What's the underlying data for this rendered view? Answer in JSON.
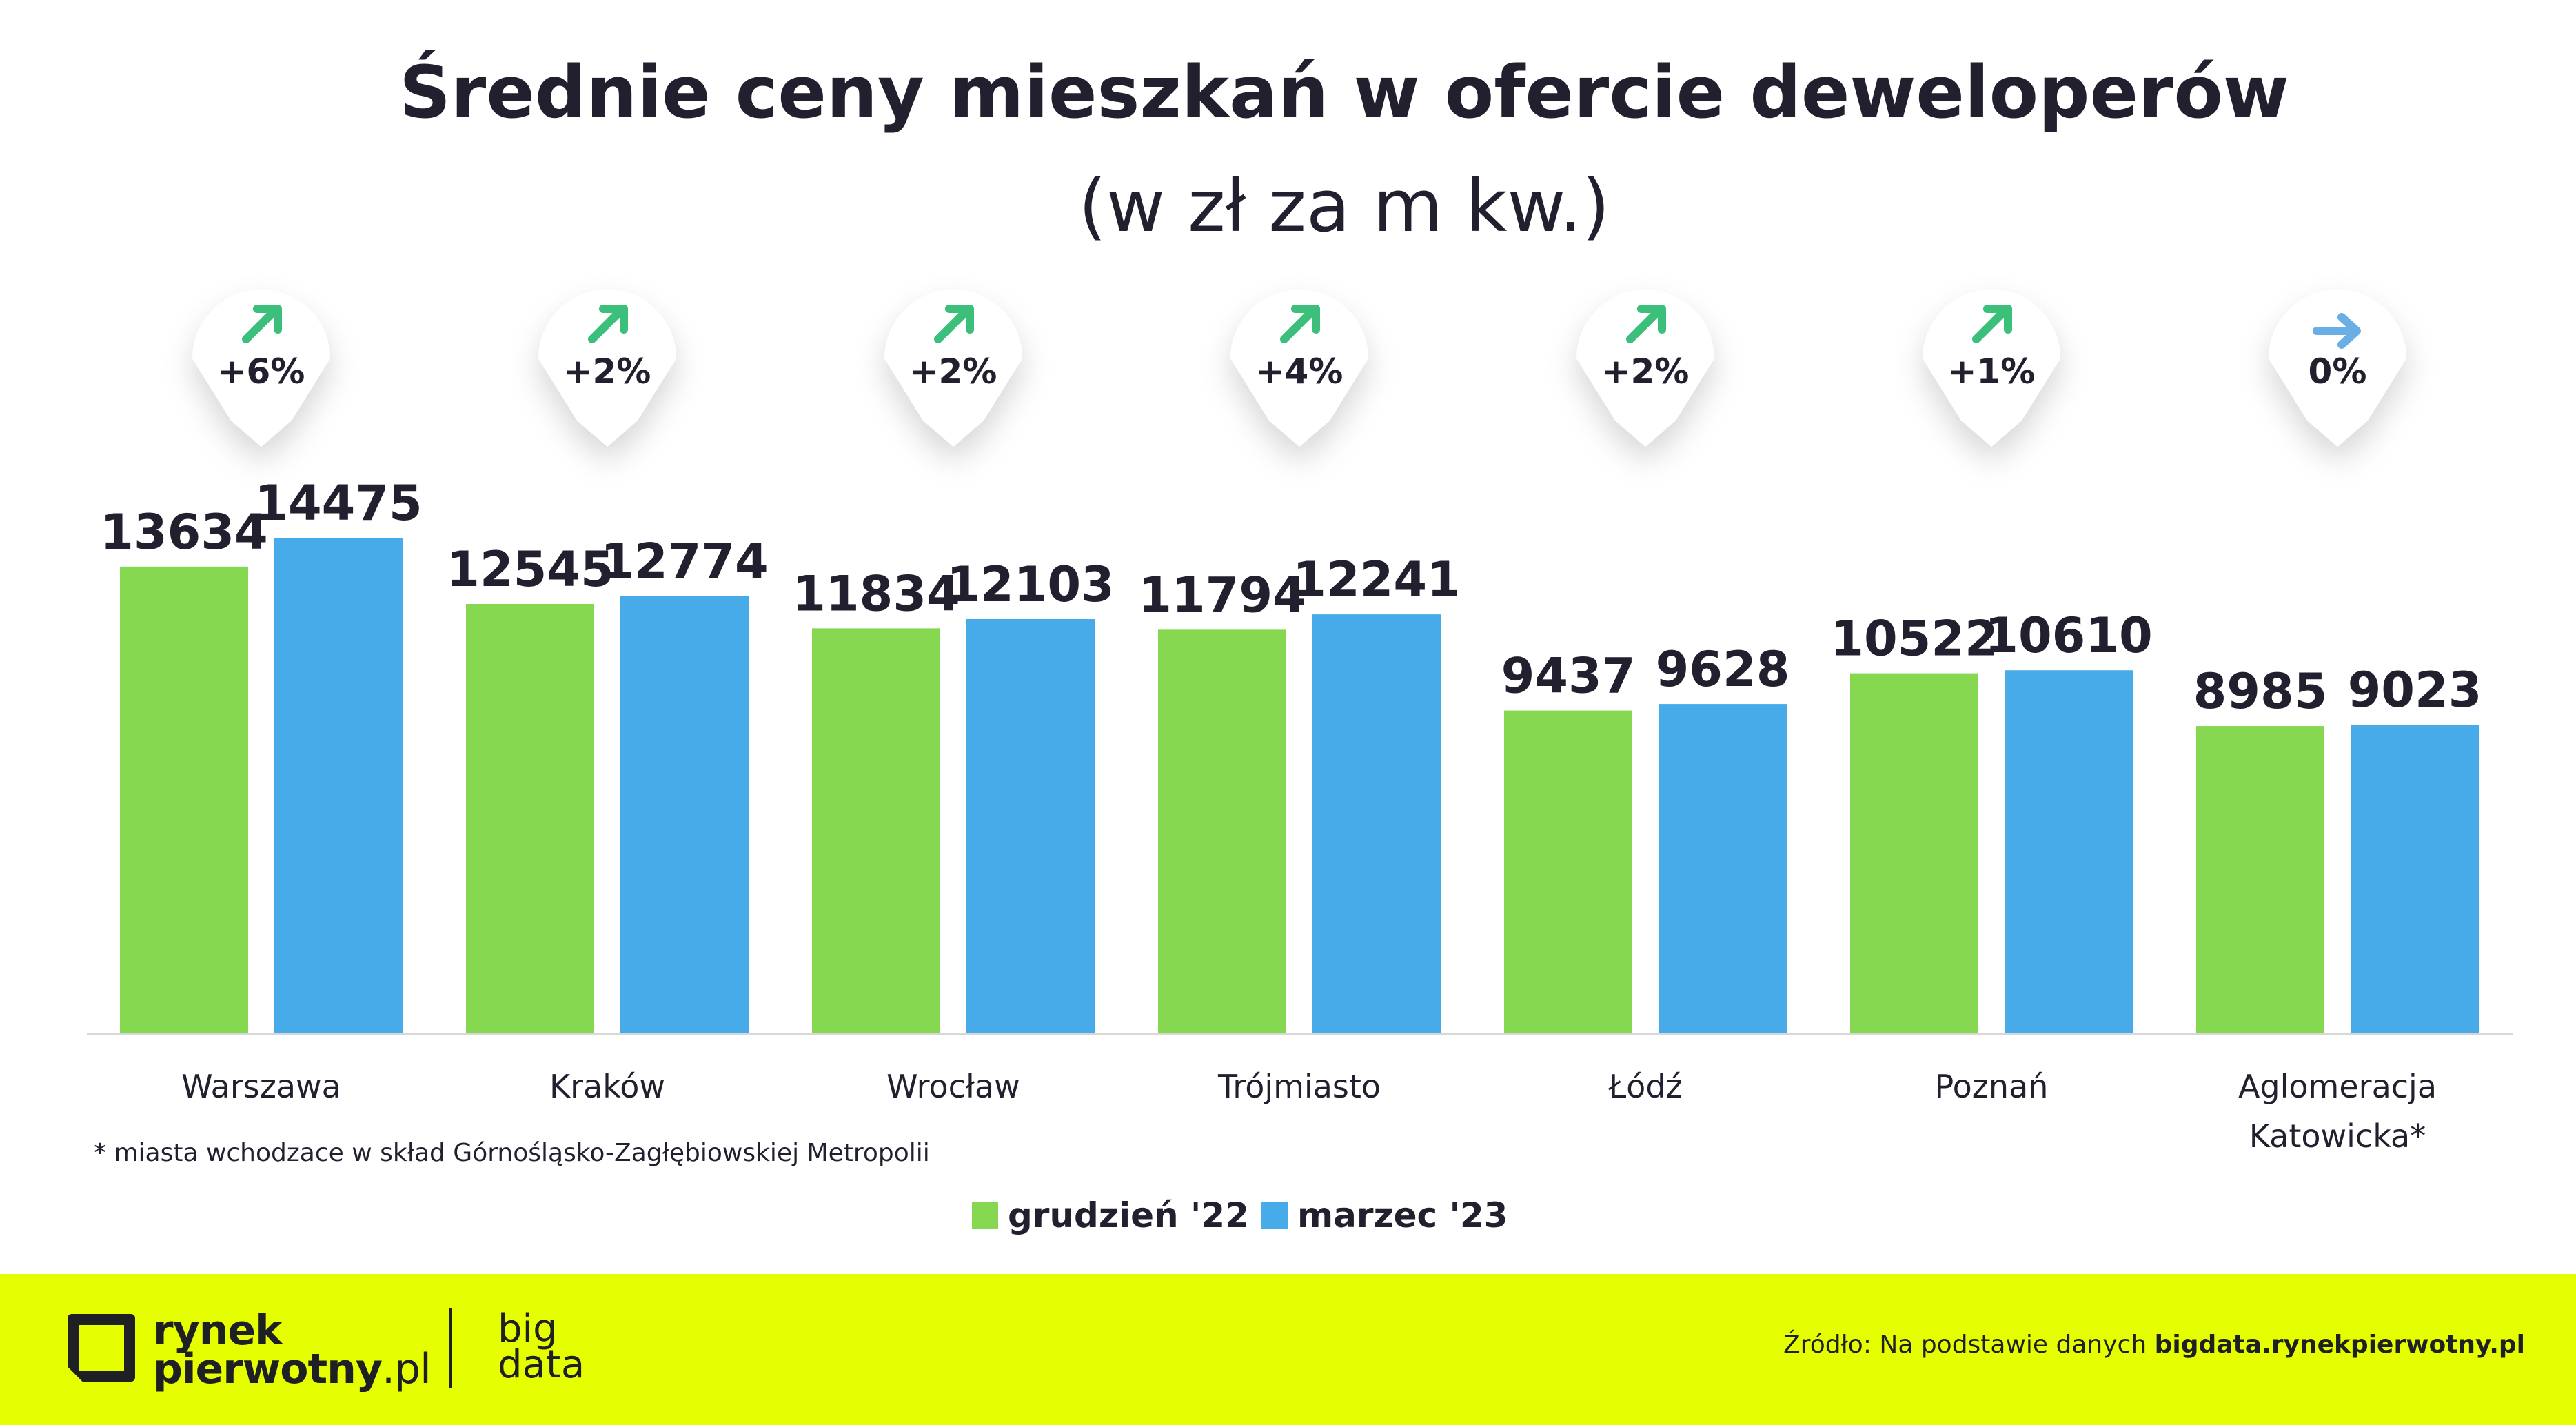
{
  "chart_data": {
    "type": "bar",
    "title": "Średnie ceny mieszkań w ofercie deweloperów",
    "subtitle": "(w zł za m kw.)",
    "categories": [
      "Warszawa",
      "Kraków",
      "Wrocław",
      "Trójmiasto",
      "Łódź",
      "Poznań",
      "Aglomeracja Katowicka*"
    ],
    "series": [
      {
        "name": "grudzień '22",
        "color": "#86d750",
        "values": [
          13634,
          12545,
          11834,
          11794,
          9437,
          10522,
          8985
        ]
      },
      {
        "name": "marzec '23",
        "color": "#48abe9",
        "values": [
          14475,
          12774,
          12103,
          12241,
          9628,
          10610,
          9023
        ]
      }
    ],
    "changes": [
      "+6%",
      "+2%",
      "+2%",
      "+4%",
      "+2%",
      "+1%",
      "0%"
    ],
    "change_icons": [
      "arrow-up-right-icon",
      "arrow-up-right-icon",
      "arrow-up-right-icon",
      "arrow-up-right-icon",
      "arrow-up-right-icon",
      "arrow-up-right-icon",
      "arrow-right-icon"
    ],
    "change_colors": [
      "#3dbf7c",
      "#3dbf7c",
      "#3dbf7c",
      "#3dbf7c",
      "#3dbf7c",
      "#3dbf7c",
      "#6aaee6"
    ],
    "ylim": [
      0,
      14475
    ],
    "grid": false,
    "legend_position": "bottom-center",
    "footnote": "* miasta wchodzace w skład Górnośląsko-Zagłębiowskiej Metropolii"
  },
  "footer": {
    "logo_line1": "rynek",
    "logo_line2": "pierwotny",
    "logo_domain": ".pl",
    "logo_big": "big",
    "logo_data": "data",
    "source_prefix": "Źródło: Na podstawie danych ",
    "source_link": "bigdata.rynekpierwotny.pl",
    "background_color": "#e6ff00"
  }
}
